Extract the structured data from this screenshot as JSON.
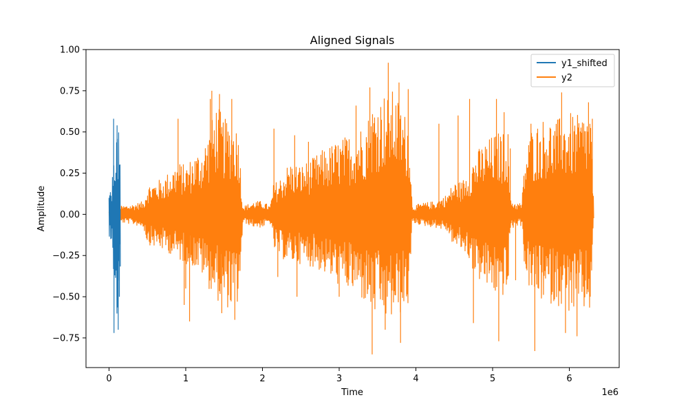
{
  "chart_data": {
    "type": "line",
    "title": "Aligned Signals",
    "xlabel": "Time",
    "ylabel": "Amplitude",
    "x_offset_label": "1e6",
    "xlim": [
      -300000,
      6650000
    ],
    "ylim": [
      -0.93,
      1.0
    ],
    "x_ticks": [
      0,
      1000000,
      2000000,
      3000000,
      4000000,
      5000000,
      6000000
    ],
    "x_tick_labels": [
      "0",
      "1",
      "2",
      "3",
      "4",
      "5",
      "6"
    ],
    "y_ticks": [
      -0.75,
      -0.5,
      -0.25,
      0.0,
      0.25,
      0.5,
      0.75,
      1.0
    ],
    "y_tick_labels": [
      "−0.75",
      "−0.50",
      "−0.25",
      "0.00",
      "0.25",
      "0.50",
      "0.75",
      "1.00"
    ],
    "legend_position": "top-right",
    "grid": false,
    "series": [
      {
        "name": "y1_shifted",
        "color": "#1f77b4",
        "envelope": {
          "x": [
            0,
            20000,
            40000,
            55000,
            70000,
            85000,
            100000,
            115000,
            130000,
            150000
          ],
          "upper": [
            0.1,
            0.18,
            0.2,
            0.3,
            0.58,
            0.45,
            0.54,
            0.5,
            0.5,
            0.32
          ],
          "lower": [
            -0.19,
            -0.17,
            -0.15,
            -0.3,
            -0.71,
            -0.6,
            -0.69,
            -0.65,
            -0.5,
            -0.4
          ]
        },
        "spikes": [
          {
            "x": 60000,
            "value": 0.58
          },
          {
            "x": 65000,
            "value": -0.72
          },
          {
            "x": 105000,
            "value": 0.54
          },
          {
            "x": 120000,
            "value": -0.7
          },
          {
            "x": 135000,
            "value": -0.5
          }
        ]
      },
      {
        "name": "y2",
        "color": "#ff7f0e",
        "envelope": {
          "x": [
            0,
            150000,
            300000,
            450000,
            500000,
            600000,
            700000,
            800000,
            900000,
            1000000,
            1100000,
            1200000,
            1300000,
            1400000,
            1500000,
            1600000,
            1700000,
            1720000,
            1750000,
            1900000,
            2000000,
            2100000,
            2150000,
            2200000,
            2350000,
            2500000,
            2650000,
            2800000,
            2950000,
            3100000,
            3250000,
            3400000,
            3450000,
            3550000,
            3650000,
            3750000,
            3850000,
            3920000,
            3950000,
            4100000,
            4250000,
            4400000,
            4500000,
            4600000,
            4700000,
            4750000,
            4850000,
            4950000,
            5050000,
            5150000,
            5200000,
            5230000,
            5300000,
            5380000,
            5420000,
            5500000,
            5600000,
            5700000,
            5800000,
            5900000,
            6000000,
            6100000,
            6200000,
            6270000,
            6280000,
            6320000
          ],
          "upper": [
            0.02,
            0.05,
            0.06,
            0.08,
            0.18,
            0.2,
            0.22,
            0.27,
            0.32,
            0.3,
            0.36,
            0.4,
            0.5,
            0.68,
            0.58,
            0.58,
            0.52,
            0.2,
            0.05,
            0.08,
            0.08,
            0.05,
            0.2,
            0.2,
            0.32,
            0.3,
            0.34,
            0.4,
            0.44,
            0.48,
            0.52,
            0.62,
            0.7,
            0.72,
            0.78,
            0.72,
            0.62,
            0.6,
            0.05,
            0.07,
            0.08,
            0.12,
            0.2,
            0.2,
            0.3,
            0.35,
            0.42,
            0.46,
            0.5,
            0.5,
            0.53,
            0.1,
            0.07,
            0.07,
            0.35,
            0.52,
            0.56,
            0.6,
            0.56,
            0.6,
            0.62,
            0.6,
            0.62,
            0.64,
            0.6,
            0.02
          ],
          "lower": [
            -0.02,
            -0.05,
            -0.06,
            -0.08,
            -0.18,
            -0.2,
            -0.22,
            -0.24,
            -0.28,
            -0.3,
            -0.32,
            -0.36,
            -0.45,
            -0.52,
            -0.56,
            -0.58,
            -0.55,
            -0.25,
            -0.05,
            -0.08,
            -0.08,
            -0.05,
            -0.22,
            -0.25,
            -0.3,
            -0.3,
            -0.32,
            -0.36,
            -0.42,
            -0.46,
            -0.5,
            -0.58,
            -0.62,
            -0.62,
            -0.66,
            -0.62,
            -0.6,
            -0.55,
            -0.05,
            -0.07,
            -0.08,
            -0.1,
            -0.2,
            -0.22,
            -0.28,
            -0.35,
            -0.42,
            -0.46,
            -0.5,
            -0.5,
            -0.5,
            -0.1,
            -0.07,
            -0.07,
            -0.35,
            -0.5,
            -0.52,
            -0.54,
            -0.55,
            -0.56,
            -0.6,
            -0.6,
            -0.6,
            -0.6,
            -0.55,
            -0.02
          ]
        },
        "spikes": [
          {
            "x": 900000,
            "value": 0.58
          },
          {
            "x": 1000000,
            "value": -0.45
          },
          {
            "x": 980000,
            "value": -0.55
          },
          {
            "x": 1050000,
            "value": -0.65
          },
          {
            "x": 1320000,
            "value": 0.7
          },
          {
            "x": 1340000,
            "value": 0.75
          },
          {
            "x": 1440000,
            "value": 0.73
          },
          {
            "x": 1470000,
            "value": -0.6
          },
          {
            "x": 1600000,
            "value": 0.7
          },
          {
            "x": 1640000,
            "value": -0.64
          },
          {
            "x": 2150000,
            "value": 0.52
          },
          {
            "x": 2200000,
            "value": -0.38
          },
          {
            "x": 2420000,
            "value": 0.48
          },
          {
            "x": 2450000,
            "value": -0.5
          },
          {
            "x": 2600000,
            "value": 0.44
          },
          {
            "x": 3000000,
            "value": -0.5
          },
          {
            "x": 3220000,
            "value": 0.66
          },
          {
            "x": 3400000,
            "value": 0.77
          },
          {
            "x": 3430000,
            "value": -0.85
          },
          {
            "x": 3640000,
            "value": 0.92
          },
          {
            "x": 3600000,
            "value": -0.7
          },
          {
            "x": 3780000,
            "value": 0.8
          },
          {
            "x": 3800000,
            "value": -0.78
          },
          {
            "x": 3900000,
            "value": 0.76
          },
          {
            "x": 4300000,
            "value": 0.55
          },
          {
            "x": 4550000,
            "value": 0.6
          },
          {
            "x": 4700000,
            "value": 0.7
          },
          {
            "x": 4750000,
            "value": -0.66
          },
          {
            "x": 5050000,
            "value": 0.7
          },
          {
            "x": 5080000,
            "value": -0.77
          },
          {
            "x": 5150000,
            "value": 0.62
          },
          {
            "x": 5230000,
            "value": 0.4
          },
          {
            "x": 5300000,
            "value": -0.4
          },
          {
            "x": 5500000,
            "value": 0.55
          },
          {
            "x": 5550000,
            "value": -0.83
          },
          {
            "x": 5900000,
            "value": 0.74
          },
          {
            "x": 5950000,
            "value": -0.72
          },
          {
            "x": 6100000,
            "value": -0.74
          },
          {
            "x": 6250000,
            "value": 0.68
          },
          {
            "x": 6300000,
            "value": 0.58
          }
        ]
      }
    ]
  }
}
